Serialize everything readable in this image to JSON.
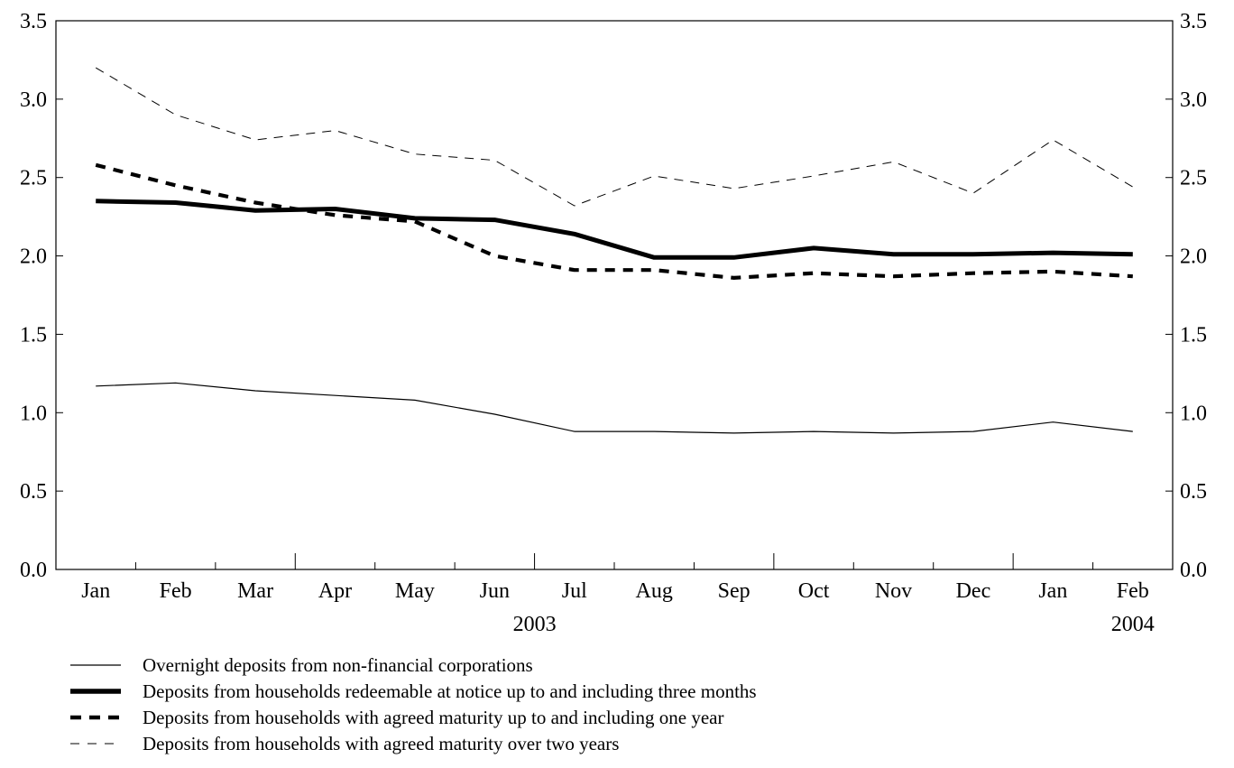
{
  "chart_data": {
    "type": "line",
    "categories": [
      "Jan",
      "Feb",
      "Mar",
      "Apr",
      "May",
      "Jun",
      "Jul",
      "Aug",
      "Sep",
      "Oct",
      "Nov",
      "Dec",
      "Jan",
      "Feb"
    ],
    "year_labels": [
      {
        "label": "2003",
        "category_index": 5.5
      },
      {
        "label": "2004",
        "category_index": 13
      }
    ],
    "ylim": [
      0,
      3.5
    ],
    "yticks": [
      "0.0",
      "0.5",
      "1.0",
      "1.5",
      "2.0",
      "2.5",
      "3.0",
      "3.5"
    ],
    "ytick_values": [
      0,
      0.5,
      1.0,
      1.5,
      2.0,
      2.5,
      3.0,
      3.5
    ],
    "grid": false,
    "legend_position": "bottom",
    "series": [
      {
        "name": "Overnight deposits from non-financial corporations",
        "style": "thin-solid",
        "color": "#000000",
        "values": [
          1.17,
          1.19,
          1.14,
          1.11,
          1.08,
          0.99,
          0.88,
          0.88,
          0.87,
          0.88,
          0.87,
          0.88,
          0.94,
          0.88
        ]
      },
      {
        "name": "Deposits from households redeemable at notice up to and including three months",
        "style": "thick-solid",
        "color": "#000000",
        "values": [
          2.35,
          2.34,
          2.29,
          2.3,
          2.24,
          2.23,
          2.14,
          1.99,
          1.99,
          2.05,
          2.01,
          2.01,
          2.02,
          2.01
        ]
      },
      {
        "name": "Deposits from households with agreed maturity up to and including one year",
        "style": "thick-dashed",
        "color": "#000000",
        "values": [
          2.58,
          2.45,
          2.34,
          2.26,
          2.22,
          2.0,
          1.91,
          1.91,
          1.86,
          1.89,
          1.87,
          1.89,
          1.9,
          1.87
        ]
      },
      {
        "name": "Deposits from households with agreed maturity over two years",
        "style": "thin-dashed",
        "color": "#000000",
        "values": [
          3.2,
          2.9,
          2.74,
          2.8,
          2.65,
          2.61,
          2.32,
          2.51,
          2.43,
          2.51,
          2.6,
          2.4,
          2.74,
          2.44
        ]
      }
    ]
  }
}
